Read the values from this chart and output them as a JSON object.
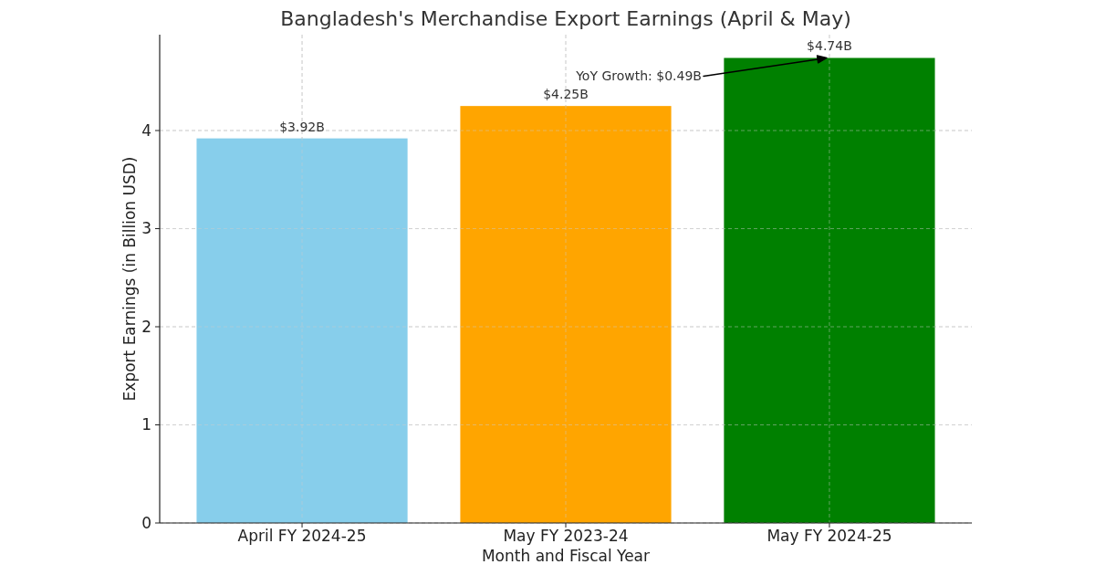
{
  "chart_data": {
    "type": "bar",
    "title": "Bangladesh's Merchandise Export Earnings (April & May)",
    "xlabel": "Month and Fiscal Year",
    "ylabel": "Export Earnings (in Billion USD)",
    "categories": [
      "April FY 2024-25",
      "May FY 2023-24",
      "May FY 2024-25"
    ],
    "values": [
      3.92,
      4.25,
      4.74
    ],
    "colors": [
      "#87ceeb",
      "#ffa500",
      "#008000"
    ],
    "value_labels": [
      "$3.92B",
      "$4.25B",
      "$4.74B"
    ],
    "annotations": [
      "YoY Growth: $0.49B"
    ],
    "ylim": [
      0,
      4.977
    ],
    "yticks": [
      0,
      1,
      2,
      3,
      4
    ],
    "grid": true
  }
}
